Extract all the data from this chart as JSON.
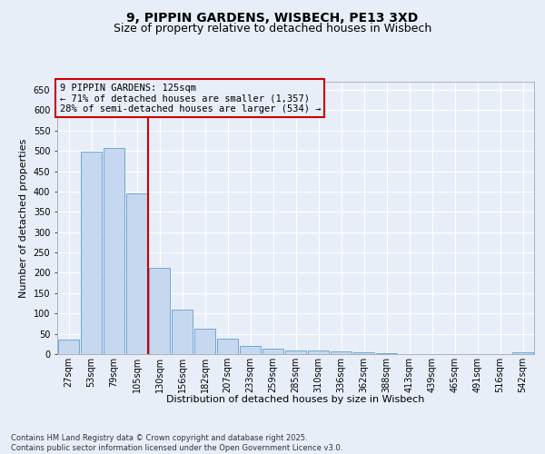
{
  "title1": "9, PIPPIN GARDENS, WISBECH, PE13 3XD",
  "title2": "Size of property relative to detached houses in Wisbech",
  "xlabel": "Distribution of detached houses by size in Wisbech",
  "ylabel": "Number of detached properties",
  "categories": [
    "27sqm",
    "53sqm",
    "79sqm",
    "105sqm",
    "130sqm",
    "156sqm",
    "182sqm",
    "207sqm",
    "233sqm",
    "259sqm",
    "285sqm",
    "310sqm",
    "336sqm",
    "362sqm",
    "388sqm",
    "413sqm",
    "439sqm",
    "465sqm",
    "491sqm",
    "516sqm",
    "542sqm"
  ],
  "values": [
    35,
    497,
    507,
    395,
    213,
    110,
    62,
    38,
    20,
    13,
    10,
    9,
    7,
    5,
    2,
    1,
    1,
    0,
    0,
    0,
    5
  ],
  "bar_color": "#c5d8ef",
  "bar_edge_color": "#6fa8d4",
  "vline_index": 3.5,
  "vline_color": "#cc0000",
  "annotation_title": "9 PIPPIN GARDENS: 125sqm",
  "annotation_line1": "← 71% of detached houses are smaller (1,357)",
  "annotation_line2": "28% of semi-detached houses are larger (534) →",
  "annotation_box_edge": "#cc0000",
  "ylim": [
    0,
    670
  ],
  "yticks": [
    0,
    50,
    100,
    150,
    200,
    250,
    300,
    350,
    400,
    450,
    500,
    550,
    600,
    650
  ],
  "footer1": "Contains HM Land Registry data © Crown copyright and database right 2025.",
  "footer2": "Contains public sector information licensed under the Open Government Licence v3.0.",
  "bg_color": "#e8eef8",
  "grid_color": "#ffffff",
  "title1_fontsize": 10,
  "title2_fontsize": 9,
  "axis_label_fontsize": 8,
  "tick_fontsize": 7,
  "annotation_fontsize": 7.5,
  "footer_fontsize": 6
}
